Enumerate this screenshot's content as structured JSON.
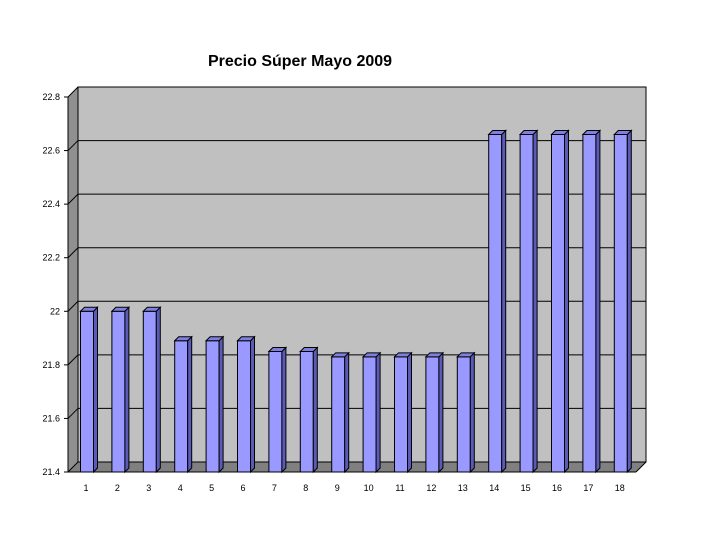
{
  "chart_data": {
    "type": "bar",
    "title": "Precio Súper Mayo 2009",
    "xlabel": "",
    "ylabel": "",
    "categories": [
      "1",
      "2",
      "3",
      "4",
      "5",
      "6",
      "7",
      "8",
      "9",
      "10",
      "11",
      "12",
      "13",
      "14",
      "15",
      "16",
      "17",
      "18"
    ],
    "values": [
      22.0,
      22.0,
      22.0,
      21.89,
      21.89,
      21.89,
      21.85,
      21.85,
      21.83,
      21.83,
      21.83,
      21.83,
      21.83,
      22.66,
      22.66,
      22.66,
      22.66,
      22.66
    ],
    "ylim": [
      21.4,
      22.8
    ],
    "yticks": [
      "21.4",
      "21.6",
      "21.8",
      "22",
      "22.2",
      "22.4",
      "22.6",
      "22.8"
    ],
    "grid": true,
    "legend": "none",
    "colors": {
      "bar_front": "#9999ff",
      "bar_side": "#5a5ab8",
      "bar_top": "#7f7fe0",
      "plot_back": "#c0c0c0",
      "plot_wall": "#909090",
      "plot_floor": "#808080"
    }
  }
}
